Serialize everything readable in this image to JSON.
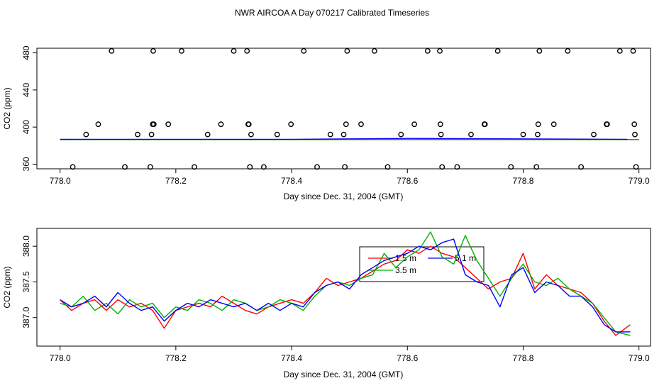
{
  "figure": {
    "title": "NWR AIRCOA A  Day 070217  Calibrated Timeseries"
  },
  "chart_data": [
    {
      "type": "scatter",
      "title": "NWR AIRCOA A  Day 070217  Calibrated Timeseries",
      "xlabel": "Day since Dec. 31, 2004 (GMT)",
      "ylabel": "CO2 (ppm)",
      "xlim": [
        777.96,
        779.02
      ],
      "ylim": [
        355,
        485
      ],
      "xticks": [
        "778.0",
        "778.2",
        "778.4",
        "778.6",
        "778.8",
        "779.0"
      ],
      "yticks": [
        "360",
        "400",
        "440",
        "480"
      ],
      "grid": false,
      "open_circle_points": {
        "x": [
          778.022,
          778.045,
          778.066,
          778.089,
          778.112,
          778.134,
          778.156,
          778.158,
          778.16,
          778.161,
          778.162,
          778.187,
          778.21,
          778.232,
          778.255,
          778.278,
          778.3,
          778.323,
          778.325,
          778.326,
          778.328,
          778.33,
          778.352,
          778.375,
          778.399,
          778.421,
          778.444,
          778.467,
          778.49,
          778.492,
          778.494,
          778.496,
          778.52,
          778.543,
          778.566,
          778.589,
          778.612,
          778.635,
          778.656,
          778.657,
          778.658,
          778.66,
          778.686,
          778.71,
          778.733,
          778.734,
          778.756,
          778.779,
          778.8,
          778.823,
          778.825,
          778.826,
          778.828,
          778.853,
          778.877,
          778.9,
          778.922,
          778.944,
          778.945,
          778.967,
          778.99,
          778.992,
          778.993,
          778.995
        ],
        "y": [
          357,
          392,
          403,
          482,
          357,
          392,
          357,
          392,
          403,
          482,
          403,
          403,
          482,
          357,
          392,
          403,
          482,
          482,
          403,
          403,
          357,
          392,
          357,
          392,
          403,
          482,
          357,
          392,
          392,
          357,
          403,
          482,
          403,
          482,
          357,
          392,
          403,
          482,
          482,
          403,
          392,
          357,
          357,
          392,
          403,
          403,
          482,
          357,
          392,
          357,
          392,
          403,
          482,
          403,
          482,
          357,
          392,
          403,
          403,
          482,
          482,
          403,
          392,
          357
        ]
      },
      "series": [
        {
          "color": "#ff0000",
          "x": [
            778.0,
            779.0
          ],
          "values": [
            386.5,
            386.5
          ]
        },
        {
          "color": "#00b000",
          "x": [
            778.0,
            779.0
          ],
          "values": [
            386.6,
            386.6
          ]
        },
        {
          "color": "#0000ff",
          "x": [
            778.0,
            778.4,
            778.6,
            778.8,
            778.98
          ],
          "values": [
            386.7,
            386.8,
            387.7,
            387.3,
            386.8
          ]
        }
      ]
    },
    {
      "type": "line",
      "xlabel": "Day since Dec. 31, 2004 (GMT)",
      "ylabel": "CO2 (ppm)",
      "xlim": [
        777.96,
        779.02
      ],
      "ylim": [
        386.6,
        388.25
      ],
      "xticks": [
        "778.0",
        "778.2",
        "778.4",
        "778.6",
        "778.8",
        "779.0"
      ],
      "yticks": [
        "387.0",
        "387.5",
        "388.0"
      ],
      "grid": false,
      "legend": {
        "placement": "top-center",
        "entries": [
          {
            "label": "1.5 m",
            "color": "#ff0000"
          },
          {
            "label": "3.5 m",
            "color": "#00b000"
          },
          {
            "label": "5.1 m",
            "color": "#0000ff"
          }
        ]
      },
      "series": [
        {
          "name": "1.5 m",
          "color": "#ff0000",
          "x": [
            778.0,
            778.02,
            778.04,
            778.06,
            778.08,
            778.1,
            778.12,
            778.14,
            778.16,
            778.18,
            778.2,
            778.22,
            778.24,
            778.26,
            778.28,
            778.3,
            778.32,
            778.34,
            778.36,
            778.38,
            778.4,
            778.42,
            778.44,
            778.46,
            778.48,
            778.5,
            778.52,
            778.54,
            778.56,
            778.58,
            778.6,
            778.62,
            778.64,
            778.66,
            778.68,
            778.7,
            778.72,
            778.74,
            778.76,
            778.78,
            778.8,
            778.82,
            778.84,
            778.86,
            778.88,
            778.9,
            778.92,
            778.94,
            778.96,
            778.985
          ],
          "values": [
            387.25,
            387.1,
            387.2,
            387.25,
            387.1,
            387.25,
            387.15,
            387.2,
            387.1,
            386.85,
            387.1,
            387.15,
            387.2,
            387.15,
            387.3,
            387.2,
            387.1,
            387.05,
            387.15,
            387.2,
            387.25,
            387.2,
            387.35,
            387.55,
            387.45,
            387.5,
            387.55,
            387.65,
            387.75,
            387.8,
            387.95,
            387.9,
            388.0,
            387.9,
            387.85,
            387.7,
            387.55,
            387.4,
            387.5,
            387.55,
            387.9,
            387.4,
            387.6,
            387.45,
            387.4,
            387.35,
            387.2,
            386.95,
            386.75,
            386.9
          ]
        },
        {
          "name": "3.5 m",
          "color": "#00b000",
          "x": [
            778.0,
            778.02,
            778.04,
            778.06,
            778.08,
            778.1,
            778.12,
            778.14,
            778.16,
            778.18,
            778.2,
            778.22,
            778.24,
            778.26,
            778.28,
            778.3,
            778.32,
            778.34,
            778.36,
            778.38,
            778.4,
            778.42,
            778.44,
            778.46,
            778.48,
            778.5,
            778.52,
            778.54,
            778.56,
            778.58,
            778.6,
            778.62,
            778.64,
            778.66,
            778.68,
            778.7,
            778.72,
            778.74,
            778.76,
            778.78,
            778.8,
            778.82,
            778.84,
            778.86,
            778.88,
            778.9,
            778.92,
            778.94,
            778.96,
            778.985
          ],
          "values": [
            387.2,
            387.15,
            387.3,
            387.1,
            387.2,
            387.05,
            387.25,
            387.15,
            387.2,
            387.0,
            387.15,
            387.1,
            387.25,
            387.2,
            387.1,
            387.25,
            387.2,
            387.1,
            387.15,
            387.25,
            387.2,
            387.1,
            387.3,
            387.45,
            387.5,
            387.45,
            387.55,
            387.6,
            387.9,
            387.7,
            387.85,
            387.95,
            388.2,
            387.85,
            387.75,
            388.15,
            387.8,
            387.55,
            387.3,
            387.55,
            387.75,
            387.5,
            387.45,
            387.55,
            387.4,
            387.3,
            387.2,
            387.0,
            386.8,
            386.75
          ]
        },
        {
          "name": "5.1 m",
          "color": "#0000ff",
          "x": [
            778.0,
            778.02,
            778.04,
            778.06,
            778.08,
            778.1,
            778.12,
            778.14,
            778.16,
            778.18,
            778.2,
            778.22,
            778.24,
            778.26,
            778.28,
            778.3,
            778.32,
            778.34,
            778.36,
            778.38,
            778.4,
            778.42,
            778.44,
            778.46,
            778.48,
            778.5,
            778.52,
            778.54,
            778.56,
            778.58,
            778.6,
            778.62,
            778.64,
            778.66,
            778.68,
            778.7,
            778.72,
            778.74,
            778.76,
            778.78,
            778.8,
            778.82,
            778.84,
            778.86,
            778.88,
            778.9,
            778.92,
            778.94,
            778.96,
            778.985
          ],
          "values": [
            387.25,
            387.15,
            387.2,
            387.3,
            387.15,
            387.35,
            387.2,
            387.1,
            387.15,
            386.95,
            387.1,
            387.2,
            387.15,
            387.25,
            387.2,
            387.15,
            387.2,
            387.1,
            387.2,
            387.1,
            387.2,
            387.15,
            387.35,
            387.45,
            387.5,
            387.4,
            387.6,
            387.7,
            387.8,
            387.85,
            387.9,
            388.0,
            387.95,
            388.05,
            388.1,
            387.6,
            387.5,
            387.45,
            387.15,
            387.6,
            387.7,
            387.35,
            387.5,
            387.45,
            387.3,
            387.3,
            387.15,
            386.9,
            386.8,
            386.8
          ]
        }
      ]
    }
  ]
}
